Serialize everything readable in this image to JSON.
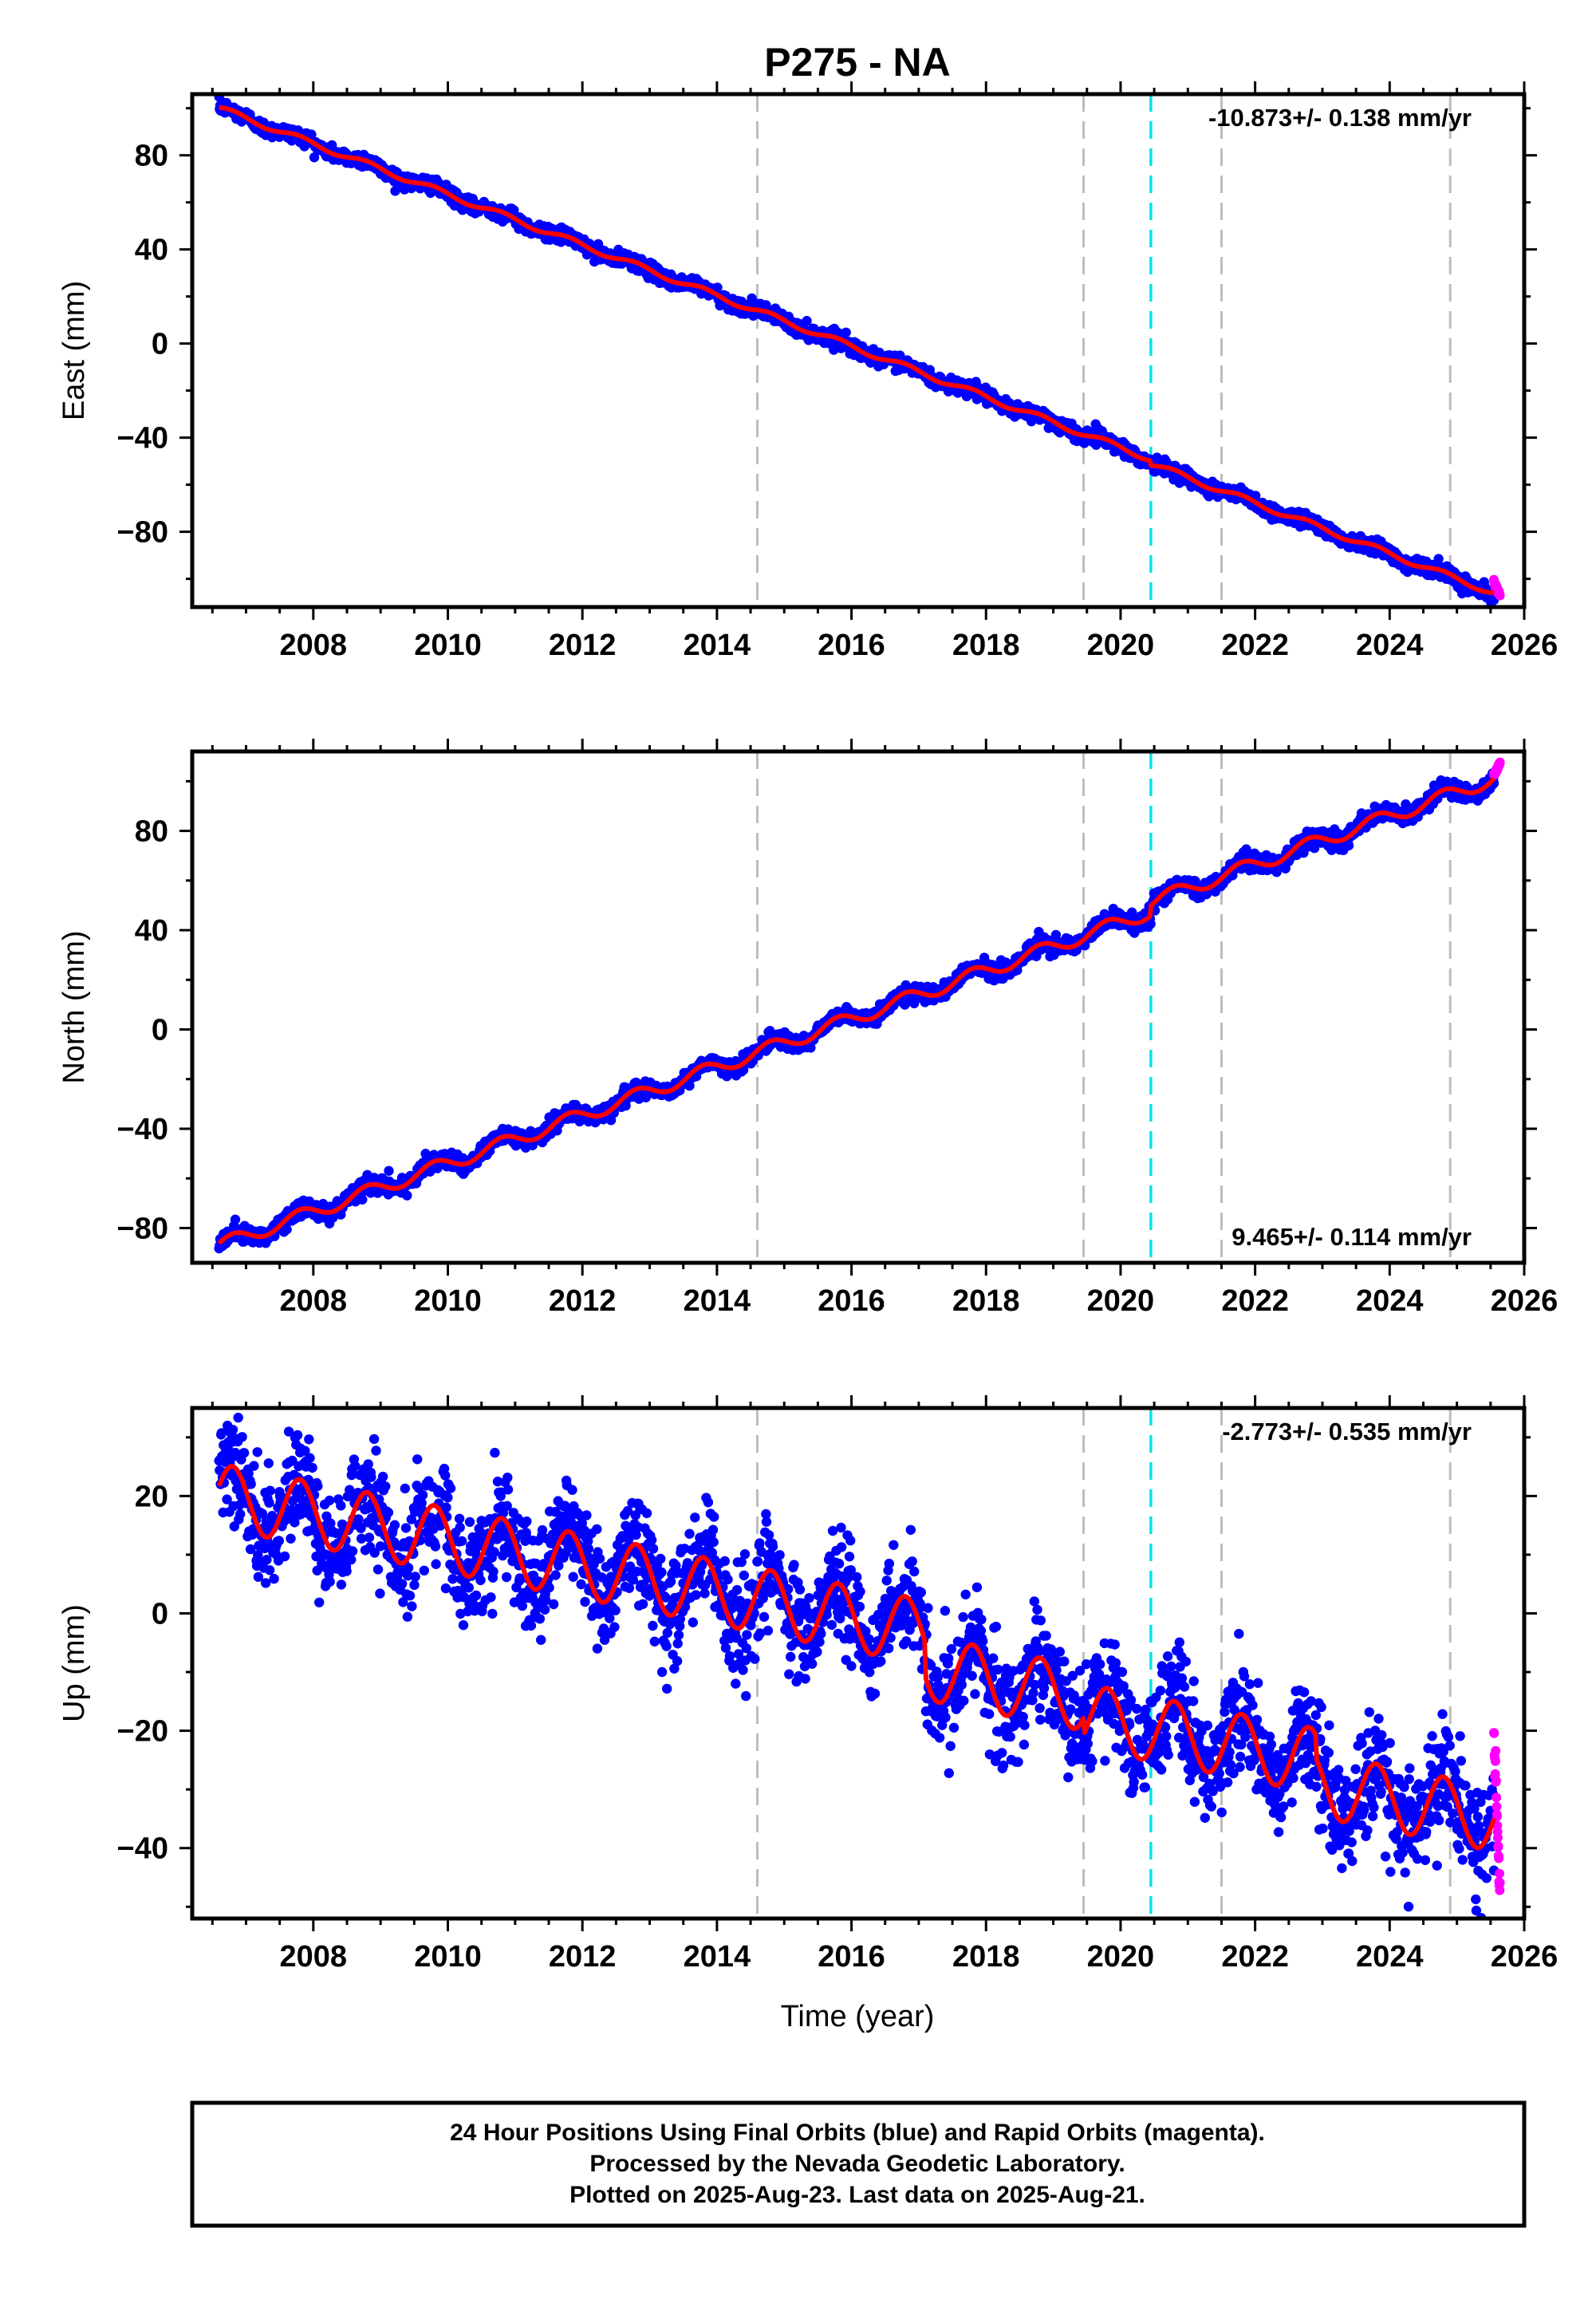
{
  "title": "P275 - NA",
  "x_axis_label": "Time (year)",
  "caption": [
    "24 Hour Positions Using Final Orbits (blue) and Rapid Orbits (magenta).",
    "Processed by the Nevada Geodetic Laboratory.",
    "Plotted on 2025-Aug-23. Last data on 2025-Aug-21."
  ],
  "colors": {
    "final_orbits": "#0000ff",
    "rapid_orbits": "#ff00ff",
    "model_fit": "#ff0000",
    "event_gray": "#bdbdbd",
    "event_cyan": "#00e5e5",
    "frame": "#000000"
  },
  "chart_data": [
    {
      "type": "scatter",
      "ylabel": "East (mm)",
      "xlim": [
        2006.2,
        2026.0
      ],
      "ylim": [
        -112,
        106
      ],
      "x_ticks": [
        2008,
        2010,
        2012,
        2014,
        2016,
        2018,
        2020,
        2022,
        2024,
        2026
      ],
      "y_ticks": [
        80,
        40,
        0,
        -40,
        -80
      ],
      "y_tick_labels": [
        "80",
        "40",
        "0",
        "−40",
        "−80"
      ],
      "rate_label": "-10.873+/- 0.138 mm/yr",
      "rate_position": "top-right",
      "gray_event_lines": [
        2014.6,
        2019.45,
        2021.5,
        2024.9
      ],
      "cyan_event_lines": [
        2020.45
      ],
      "offsets": [
        {
          "x": 2020.45,
          "dy": -2
        }
      ],
      "series": [
        {
          "name": "Final Orbits",
          "x_start": 2006.6,
          "x_end": 2025.55,
          "start": 100,
          "end": -106,
          "annual_amp": 1.2,
          "noise": 1.5
        },
        {
          "name": "Rapid Orbits",
          "x_start": 2025.55,
          "x_end": 2025.64,
          "start": -101,
          "end": -107,
          "noise": 1.5
        }
      ]
    },
    {
      "type": "scatter",
      "ylabel": "North (mm)",
      "xlim": [
        2006.2,
        2026.0
      ],
      "ylim": [
        -94,
        112
      ],
      "x_ticks": [
        2008,
        2010,
        2012,
        2014,
        2016,
        2018,
        2020,
        2022,
        2024,
        2026
      ],
      "y_ticks": [
        80,
        40,
        0,
        -40,
        -80
      ],
      "y_tick_labels": [
        "80",
        "40",
        "0",
        "−40",
        "−80"
      ],
      "rate_label": "9.465+/- 0.114 mm/yr",
      "rate_position": "bottom-right",
      "gray_event_lines": [
        2014.6,
        2019.45,
        2021.5,
        2024.9
      ],
      "cyan_event_lines": [
        2020.45
      ],
      "offsets": [
        {
          "x": 2020.45,
          "dy": 4
        }
      ],
      "series": [
        {
          "name": "Final Orbits",
          "x_start": 2006.6,
          "x_end": 2025.55,
          "start": -87,
          "end": 101,
          "annual_amp": 2.8,
          "noise": 1.6
        },
        {
          "name": "Rapid Orbits",
          "x_start": 2025.55,
          "x_end": 2025.64,
          "start": 103,
          "end": 107,
          "noise": 1.5
        }
      ]
    },
    {
      "type": "scatter",
      "ylabel": "Up (mm)",
      "xlim": [
        2006.2,
        2026.0
      ],
      "ylim": [
        -52,
        35
      ],
      "x_ticks": [
        2008,
        2010,
        2012,
        2014,
        2016,
        2018,
        2020,
        2022,
        2024,
        2026
      ],
      "y_ticks": [
        20,
        0,
        -20,
        -40
      ],
      "y_tick_labels": [
        "20",
        "0",
        "−20",
        "−40"
      ],
      "rate_label": "-2.773+/- 0.535 mm/yr",
      "rate_position": "top-right",
      "gray_event_lines": [
        2014.6,
        2019.45,
        2021.5,
        2024.9
      ],
      "cyan_event_lines": [
        2020.45
      ],
      "offsets": [
        {
          "x": 2017.1,
          "dy": -6
        },
        {
          "x": 2019.45,
          "dy": -3
        },
        {
          "x": 2022.9,
          "dy": -4
        }
      ],
      "series": [
        {
          "name": "Final Orbits",
          "x_start": 2006.6,
          "x_end": 2025.55,
          "start": 20,
          "end": -35,
          "annual_amp": 5.5,
          "noise": 4.5
        },
        {
          "name": "Rapid Orbits",
          "x_start": 2025.55,
          "x_end": 2025.64,
          "start": -20,
          "end": -49,
          "noise": 8
        }
      ]
    }
  ]
}
